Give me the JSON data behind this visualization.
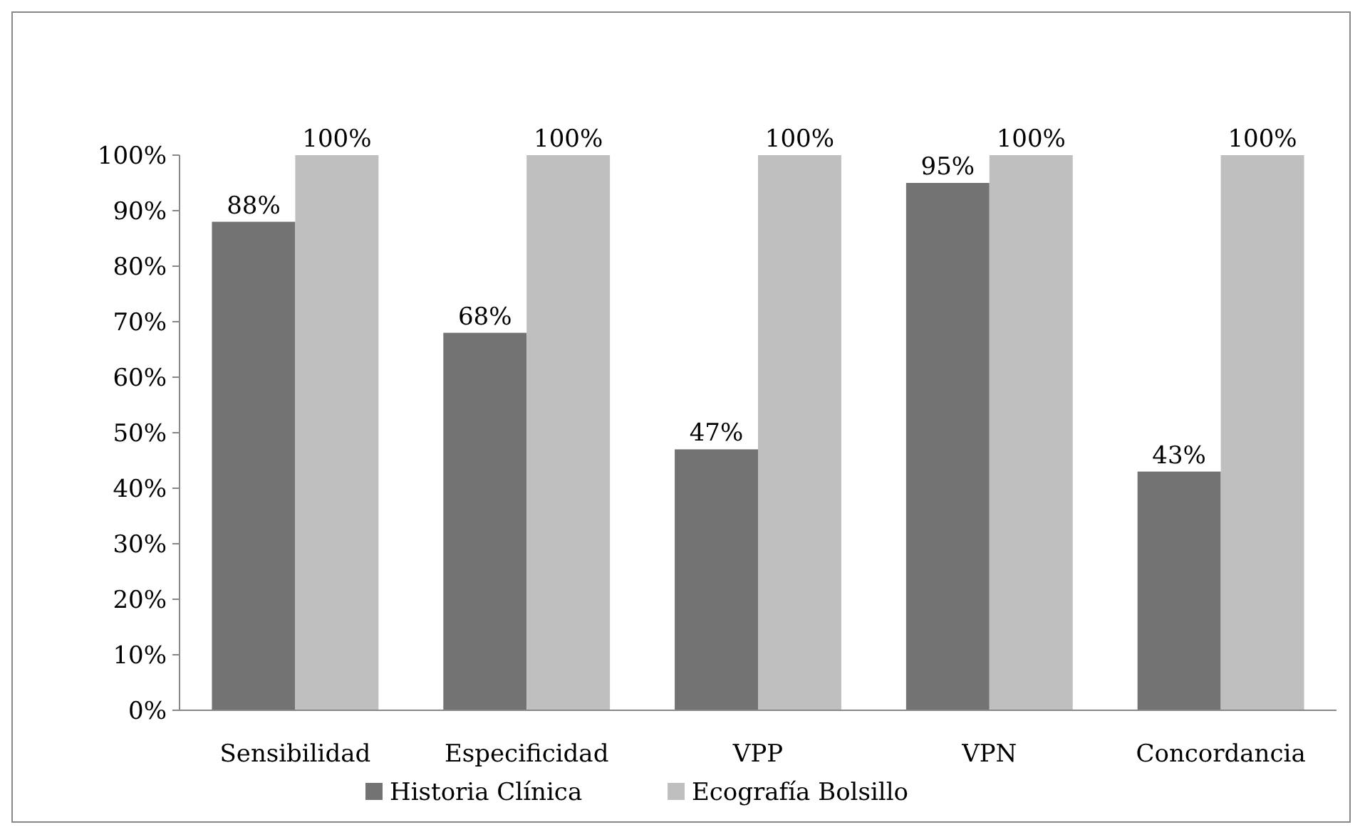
{
  "chart_data": {
    "type": "bar",
    "categories": [
      "Sensibilidad",
      "Especificidad",
      "VPP",
      "VPN",
      "Concordancia"
    ],
    "series": [
      {
        "name": "Historia Clínica",
        "color": "#737373",
        "values": [
          88,
          68,
          47,
          95,
          43
        ],
        "value_labels": [
          "88%",
          "68%",
          "47%",
          "95%",
          "43%"
        ]
      },
      {
        "name": "Ecografía Bolsillo",
        "color": "#bfbfbf",
        "values": [
          100,
          100,
          100,
          100,
          100
        ],
        "value_labels": [
          "100%",
          "100%",
          "100%",
          "100%",
          "100%"
        ]
      }
    ],
    "ylim": [
      0,
      100
    ],
    "yticks": [
      {
        "value": 0,
        "label": "0%"
      },
      {
        "value": 10,
        "label": "10%"
      },
      {
        "value": 20,
        "label": "20%"
      },
      {
        "value": 30,
        "label": "30%"
      },
      {
        "value": 40,
        "label": "40%"
      },
      {
        "value": 50,
        "label": "50%"
      },
      {
        "value": 60,
        "label": "60%"
      },
      {
        "value": 70,
        "label": "70%"
      },
      {
        "value": 80,
        "label": "80%"
      },
      {
        "value": 90,
        "label": "90%"
      },
      {
        "value": 100,
        "label": "100%"
      }
    ],
    "grid": false,
    "legend": "bottom"
  }
}
